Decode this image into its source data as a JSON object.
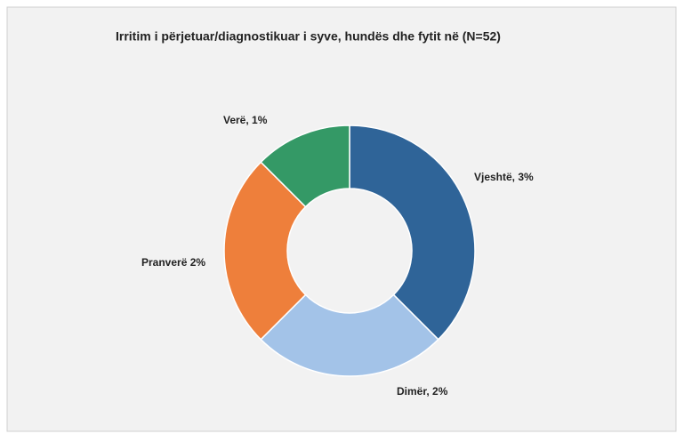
{
  "chart_data": {
    "type": "donut",
    "title": "Irritim i përjetuar/diagnostikuar i syve, hundës dhe fytit në (N=52)",
    "values": [
      3,
      2,
      2,
      1
    ],
    "value_labels": [
      "Vjeshtë, 3%",
      "Dimër, 2%",
      "Pranverë 2%",
      "Verë, 1%"
    ],
    "colors": [
      "#2f6498",
      "#a3c3e8",
      "#ee7f3b",
      "#349966"
    ]
  }
}
